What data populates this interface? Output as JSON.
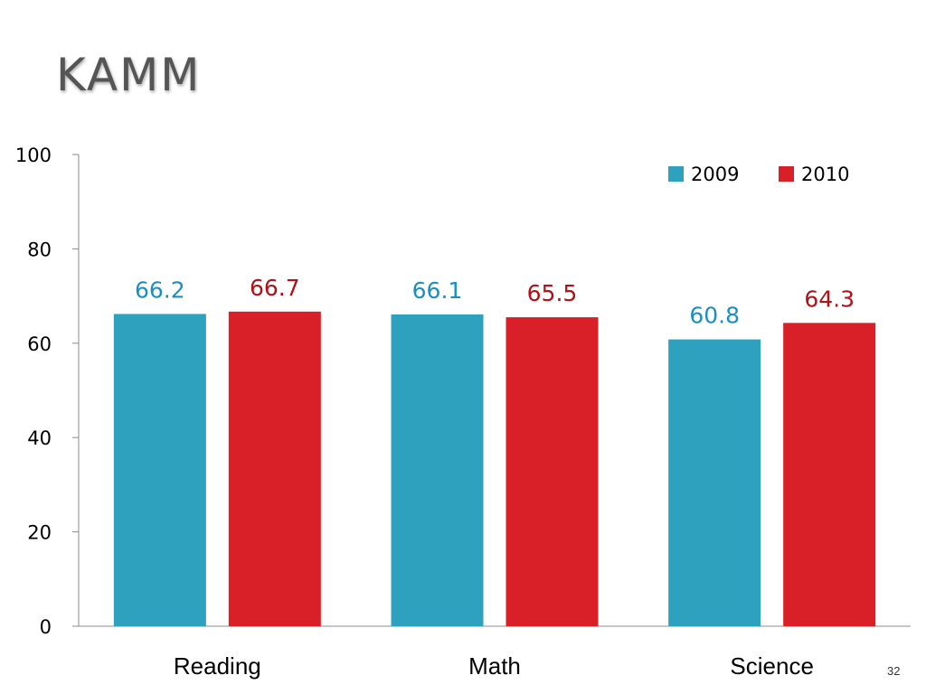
{
  "slide": {
    "title": "KAMM",
    "page_number": "32"
  },
  "chart_data": {
    "type": "bar",
    "title": "",
    "xlabel": "",
    "ylabel": "",
    "categories": [
      "Reading",
      "Math",
      "Science"
    ],
    "series": [
      {
        "name": "2009",
        "values": [
          66.2,
          66.1,
          60.8
        ],
        "color": "#2ea1be",
        "label_color": "#1a8fc4"
      },
      {
        "name": "2010",
        "values": [
          66.7,
          65.5,
          64.3
        ],
        "color": "#d92028",
        "label_color": "#b50f18"
      }
    ],
    "data_labels": [
      [
        "66.2",
        "66.1",
        "60.8"
      ],
      [
        "66.7",
        "65.5",
        "64.3"
      ]
    ],
    "ylim": [
      0,
      100
    ],
    "yticks": [
      "0",
      "20",
      "40",
      "60",
      "80",
      "100"
    ],
    "grid": false,
    "legend_position": "top-right"
  }
}
